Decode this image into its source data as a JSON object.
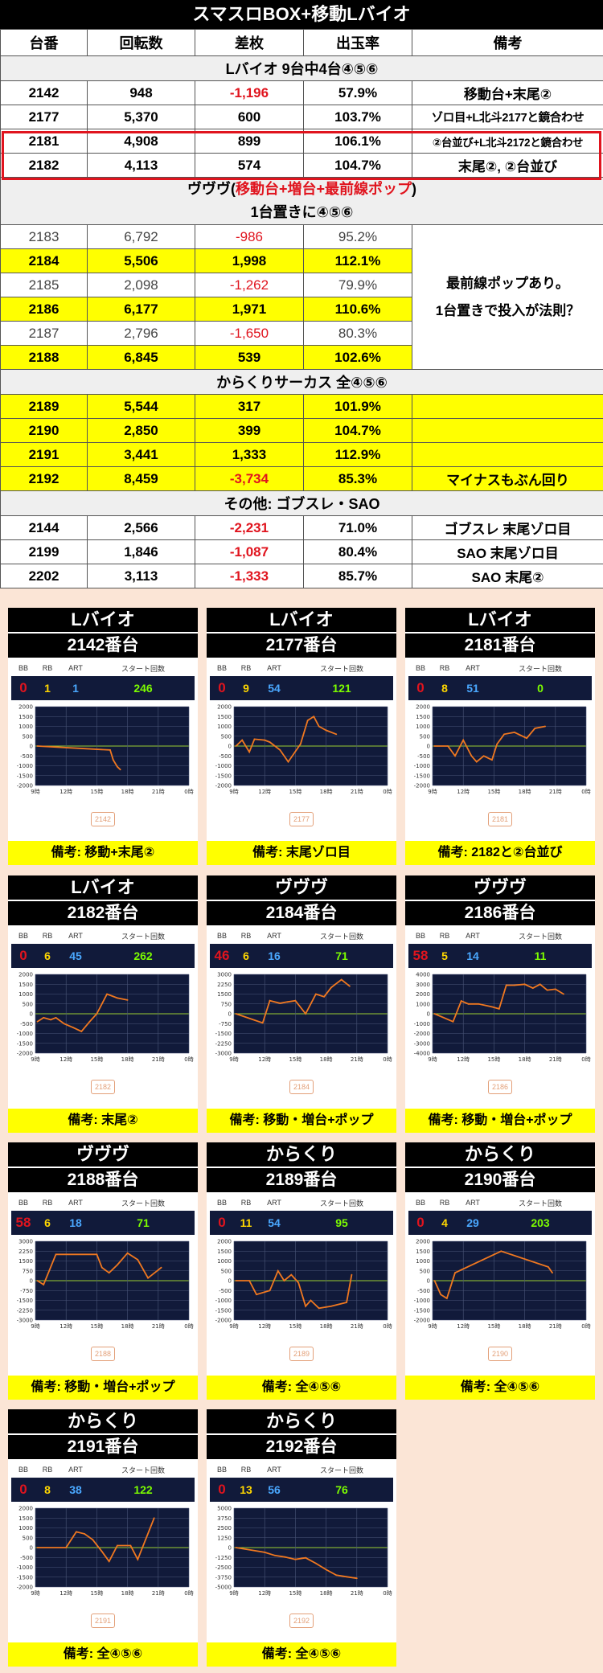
{
  "title": "スマスロBOX+移動Lバイオ",
  "headers": [
    "台番",
    "回転数",
    "差枚",
    "出玉率",
    "備考"
  ],
  "section1": "Lバイオ 9台中4台④⑤⑥",
  "rows1": [
    {
      "no": "2142",
      "spins": "948",
      "diff": "-1,196",
      "rate": "57.9%",
      "note": "移動台+末尾②"
    },
    {
      "no": "2177",
      "spins": "5,370",
      "diff": "600",
      "rate": "103.7%",
      "note": "ゾロ目+L北斗2177と鏡合わせ"
    },
    {
      "no": "2181",
      "spins": "4,908",
      "diff": "899",
      "rate": "106.1%",
      "note": "②台並び+L北斗2172と鏡合わせ"
    },
    {
      "no": "2182",
      "spins": "4,113",
      "diff": "574",
      "rate": "104.7%",
      "note": "末尾②, ②台並び"
    }
  ],
  "section2": {
    "pre": "ヴヴヴ(",
    "red": "移動台+増台+最前線ポップ",
    "post": ")",
    "line2": "1台置きに④⑤⑥"
  },
  "rows2": [
    {
      "no": "2183",
      "spins": "6,792",
      "diff": "-986",
      "rate": "95.2%"
    },
    {
      "no": "2184",
      "spins": "5,506",
      "diff": "1,998",
      "rate": "112.1%"
    },
    {
      "no": "2185",
      "spins": "2,098",
      "diff": "-1,262",
      "rate": "79.9%"
    },
    {
      "no": "2186",
      "spins": "6,177",
      "diff": "1,971",
      "rate": "110.6%"
    },
    {
      "no": "2187",
      "spins": "2,796",
      "diff": "-1,650",
      "rate": "80.3%"
    },
    {
      "no": "2188",
      "spins": "6,845",
      "diff": "539",
      "rate": "102.6%"
    }
  ],
  "rows2_note_line1": "最前線ポップあり。",
  "rows2_note_line2": "1台置きで投入が法則？",
  "section3": "からくりサーカス 全④⑤⑥",
  "rows3": [
    {
      "no": "2189",
      "spins": "5,544",
      "diff": "317",
      "rate": "101.9%",
      "note": ""
    },
    {
      "no": "2190",
      "spins": "2,850",
      "diff": "399",
      "rate": "104.7%",
      "note": ""
    },
    {
      "no": "2191",
      "spins": "3,441",
      "diff": "1,333",
      "rate": "112.9%",
      "note": ""
    },
    {
      "no": "2192",
      "spins": "8,459",
      "diff": "-3,734",
      "rate": "85.3%",
      "note": "マイナスもぶん回り"
    }
  ],
  "section4": "その他: ゴブスレ・SAO",
  "rows4": [
    {
      "no": "2144",
      "spins": "2,566",
      "diff": "-2,231",
      "rate": "71.0%",
      "note": "ゴブスレ 末尾ゾロ目"
    },
    {
      "no": "2199",
      "spins": "1,846",
      "diff": "-1,087",
      "rate": "80.4%",
      "note": "SAO 末尾ゾロ目"
    },
    {
      "no": "2202",
      "spins": "3,113",
      "diff": "-1,333",
      "rate": "85.7%",
      "note": "SAO 末尾②"
    }
  ],
  "card_labels": {
    "bb": "BB",
    "rb": "RB",
    "art": "ART",
    "start": "スタート回数"
  },
  "colors": {
    "accent_red": "#e0141e",
    "highlight_yellow": "#ffff00",
    "line_orange": "#f07820",
    "panel_navy": "#111a3a"
  },
  "cards": [
    {
      "machine": "Lバイオ",
      "unit": "2142番台",
      "badge": "2142",
      "bb": "0",
      "rb": "1",
      "art": "1",
      "start": "246",
      "note": "備考: 移動+末尾②",
      "chart": {
        "yticks": [
          "2000",
          "1500",
          "1000",
          "500",
          "0",
          "-500",
          "-1000",
          "-1500",
          "-2000"
        ],
        "ymin": -2000,
        "ymax": 2000,
        "xticks": [
          "9時",
          "12時",
          "15時",
          "18時",
          "21時",
          "0時"
        ],
        "points": [
          [
            9.2,
            0
          ],
          [
            16.3,
            -200
          ],
          [
            16.6,
            -700
          ],
          [
            17.0,
            -1050
          ],
          [
            17.3,
            -1200
          ]
        ]
      }
    },
    {
      "machine": "Lバイオ",
      "unit": "2177番台",
      "badge": "2177",
      "bb": "0",
      "rb": "9",
      "art": "54",
      "start": "121",
      "note": "備考: 末尾ゾロ目",
      "chart": {
        "yticks": [
          "2000",
          "1500",
          "1000",
          "500",
          "0",
          "-500",
          "-1000",
          "-1500",
          "-2000"
        ],
        "ymin": -2000,
        "ymax": 2000,
        "xticks": [
          "9時",
          "12時",
          "15時",
          "18時",
          "21時",
          "0時"
        ],
        "points": [
          [
            9.2,
            0
          ],
          [
            9.8,
            300
          ],
          [
            10.5,
            -300
          ],
          [
            11.0,
            350
          ],
          [
            12.0,
            300
          ],
          [
            12.5,
            200
          ],
          [
            13.5,
            -200
          ],
          [
            14.3,
            -800
          ],
          [
            15.5,
            100
          ],
          [
            16.2,
            1300
          ],
          [
            16.8,
            1500
          ],
          [
            17.3,
            1000
          ],
          [
            18.0,
            800
          ],
          [
            19.0,
            600
          ]
        ]
      }
    },
    {
      "machine": "Lバイオ",
      "unit": "2181番台",
      "badge": "2181",
      "bb": "0",
      "rb": "8",
      "art": "51",
      "start": "0",
      "note": "備考: 2182と②台並び",
      "chart": {
        "yticks": [
          "2000",
          "1500",
          "1000",
          "500",
          "0",
          "-500",
          "-1000",
          "-1500",
          "-2000"
        ],
        "ymin": -2000,
        "ymax": 2000,
        "xticks": [
          "9時",
          "12時",
          "15時",
          "18時",
          "21時",
          "0時"
        ],
        "points": [
          [
            9.2,
            0
          ],
          [
            10.5,
            0
          ],
          [
            11.2,
            -500
          ],
          [
            12.0,
            300
          ],
          [
            12.8,
            -500
          ],
          [
            13.3,
            -800
          ],
          [
            14.0,
            -500
          ],
          [
            14.8,
            -700
          ],
          [
            15.3,
            100
          ],
          [
            16.0,
            600
          ],
          [
            17.0,
            700
          ],
          [
            18.2,
            400
          ],
          [
            19.0,
            900
          ],
          [
            20.0,
            1000
          ]
        ]
      }
    },
    {
      "machine": "Lバイオ",
      "unit": "2182番台",
      "badge": "2182",
      "bb": "0",
      "rb": "6",
      "art": "45",
      "start": "262",
      "note": "備考: 末尾②",
      "chart": {
        "yticks": [
          "2000",
          "1500",
          "1000",
          "500",
          "0",
          "-500",
          "-1000",
          "-1500",
          "-2000"
        ],
        "ymin": -2000,
        "ymax": 2000,
        "xticks": [
          "9時",
          "12時",
          "15時",
          "18時",
          "21時",
          "0時"
        ],
        "points": [
          [
            9.2,
            -400
          ],
          [
            9.8,
            -200
          ],
          [
            10.5,
            -300
          ],
          [
            11.0,
            -200
          ],
          [
            11.8,
            -500
          ],
          [
            12.7,
            -700
          ],
          [
            13.5,
            -900
          ],
          [
            14.3,
            -400
          ],
          [
            15.0,
            0
          ],
          [
            16.0,
            1000
          ],
          [
            17.0,
            800
          ],
          [
            18.0,
            700
          ]
        ]
      }
    },
    {
      "machine": "ヴヴヴ",
      "unit": "2184番台",
      "badge": "2184",
      "bb": "46",
      "rb": "6",
      "art": "16",
      "start": "71",
      "note": "備考: 移動・増台+ポップ",
      "chart": {
        "yticks": [
          "3000",
          "2250",
          "1500",
          "750",
          "0",
          "-750",
          "-1500",
          "-2250",
          "-3000"
        ],
        "ymin": -3000,
        "ymax": 3000,
        "xticks": [
          "9時",
          "12時",
          "15時",
          "18時",
          "21時",
          "0時"
        ],
        "points": [
          [
            9.2,
            0
          ],
          [
            11.8,
            -700
          ],
          [
            12.5,
            1000
          ],
          [
            13.5,
            800
          ],
          [
            14.2,
            900
          ],
          [
            15.0,
            1000
          ],
          [
            16.0,
            0
          ],
          [
            17.0,
            1500
          ],
          [
            17.8,
            1300
          ],
          [
            18.5,
            2000
          ],
          [
            19.5,
            2600
          ],
          [
            20.3,
            2100
          ]
        ]
      }
    },
    {
      "machine": "ヴヴヴ",
      "unit": "2186番台",
      "badge": "2186",
      "bb": "58",
      "rb": "5",
      "art": "14",
      "start": "11",
      "note": "備考: 移動・増台+ポップ",
      "chart": {
        "yticks": [
          "4000",
          "3000",
          "2000",
          "1000",
          "0",
          "-1000",
          "-2000",
          "-3000",
          "-4000"
        ],
        "ymin": -4000,
        "ymax": 4000,
        "xticks": [
          "9時",
          "12時",
          "15時",
          "18時",
          "21時",
          "0時"
        ],
        "points": [
          [
            9.2,
            0
          ],
          [
            11.0,
            -800
          ],
          [
            11.8,
            1300
          ],
          [
            12.5,
            1000
          ],
          [
            13.5,
            1000
          ],
          [
            14.8,
            700
          ],
          [
            15.5,
            500
          ],
          [
            16.2,
            2900
          ],
          [
            17.0,
            2900
          ],
          [
            18.0,
            3000
          ],
          [
            18.8,
            2600
          ],
          [
            19.5,
            3000
          ],
          [
            20.2,
            2400
          ],
          [
            21.0,
            2500
          ],
          [
            21.8,
            2000
          ]
        ]
      }
    },
    {
      "machine": "ヴヴヴ",
      "unit": "2188番台",
      "badge": "2188",
      "bb": "58",
      "rb": "6",
      "art": "18",
      "start": "71",
      "note": "備考: 移動・増台+ポップ",
      "chart": {
        "yticks": [
          "3000",
          "2250",
          "1500",
          "750",
          "0",
          "-750",
          "-1500",
          "-2250",
          "-3000"
        ],
        "ymin": -3000,
        "ymax": 3000,
        "xticks": [
          "9時",
          "12時",
          "15時",
          "18時",
          "21時",
          "0時"
        ],
        "points": [
          [
            9.2,
            0
          ],
          [
            9.8,
            -300
          ],
          [
            11.0,
            2000
          ],
          [
            15.0,
            2000
          ],
          [
            15.5,
            1000
          ],
          [
            16.2,
            600
          ],
          [
            17.0,
            1200
          ],
          [
            18.0,
            2100
          ],
          [
            19.0,
            1600
          ],
          [
            20.0,
            200
          ],
          [
            21.3,
            1000
          ]
        ]
      }
    },
    {
      "machine": "からくり",
      "unit": "2189番台",
      "badge": "2189",
      "bb": "0",
      "rb": "11",
      "art": "54",
      "start": "95",
      "note": "備考: 全④⑤⑥",
      "chart": {
        "yticks": [
          "2000",
          "1500",
          "1000",
          "500",
          "0",
          "-500",
          "-1000",
          "-1500",
          "-2000"
        ],
        "ymin": -2000,
        "ymax": 2000,
        "xticks": [
          "9時",
          "12時",
          "15時",
          "18時",
          "21時",
          "0時"
        ],
        "points": [
          [
            9.2,
            0
          ],
          [
            10.5,
            0
          ],
          [
            11.2,
            -700
          ],
          [
            12.5,
            -500
          ],
          [
            13.3,
            500
          ],
          [
            13.9,
            0
          ],
          [
            14.6,
            300
          ],
          [
            15.3,
            -100
          ],
          [
            16.0,
            -1300
          ],
          [
            16.5,
            -1000
          ],
          [
            17.3,
            -1400
          ],
          [
            18.5,
            -1300
          ],
          [
            20.0,
            -1100
          ],
          [
            20.5,
            300
          ]
        ]
      }
    },
    {
      "machine": "からくり",
      "unit": "2190番台",
      "badge": "2190",
      "bb": "0",
      "rb": "4",
      "art": "29",
      "start": "203",
      "note": "備考: 全④⑤⑥",
      "chart": {
        "yticks": [
          "2000",
          "1500",
          "1000",
          "500",
          "0",
          "-500",
          "-1000",
          "-1500",
          "-2000"
        ],
        "ymin": -2000,
        "ymax": 2000,
        "xticks": [
          "9時",
          "12時",
          "15時",
          "18時",
          "21時",
          "0時"
        ],
        "points": [
          [
            9.2,
            0
          ],
          [
            9.8,
            -700
          ],
          [
            10.4,
            -900
          ],
          [
            11.2,
            400
          ],
          [
            15.7,
            1500
          ],
          [
            20.3,
            700
          ],
          [
            20.7,
            400
          ]
        ]
      }
    },
    {
      "machine": "からくり",
      "unit": "2191番台",
      "badge": "2191",
      "bb": "0",
      "rb": "8",
      "art": "38",
      "start": "122",
      "note": "備考: 全④⑤⑥",
      "chart": {
        "yticks": [
          "2000",
          "1500",
          "1000",
          "500",
          "0",
          "-500",
          "-1000",
          "-1500",
          "-2000"
        ],
        "ymin": -2000,
        "ymax": 2000,
        "xticks": [
          "9時",
          "12時",
          "15時",
          "18時",
          "21時",
          "0時"
        ],
        "points": [
          [
            9.2,
            0
          ],
          [
            12.0,
            0
          ],
          [
            13.0,
            800
          ],
          [
            13.8,
            700
          ],
          [
            14.6,
            400
          ],
          [
            15.5,
            -200
          ],
          [
            16.2,
            -700
          ],
          [
            17.0,
            100
          ],
          [
            18.3,
            100
          ],
          [
            19.0,
            -600
          ],
          [
            20.6,
            1500
          ]
        ]
      }
    },
    {
      "machine": "からくり",
      "unit": "2192番台",
      "badge": "2192",
      "bb": "0",
      "rb": "13",
      "art": "56",
      "start": "76",
      "note": "備考: 全④⑤⑥",
      "chart": {
        "yticks": [
          "5000",
          "3750",
          "2500",
          "1250",
          "0",
          "-1250",
          "-2500",
          "-3750",
          "-5000"
        ],
        "ymin": -5000,
        "ymax": 5000,
        "xticks": [
          "9時",
          "12時",
          "15時",
          "18時",
          "21時",
          "0時"
        ],
        "points": [
          [
            9.2,
            0
          ],
          [
            12.0,
            -600
          ],
          [
            13.0,
            -1000
          ],
          [
            14.0,
            -1200
          ],
          [
            15.0,
            -1500
          ],
          [
            16.0,
            -1300
          ],
          [
            17.0,
            -2000
          ],
          [
            18.0,
            -2800
          ],
          [
            19.0,
            -3500
          ],
          [
            20.0,
            -3700
          ],
          [
            21.0,
            -3900
          ]
        ]
      }
    }
  ]
}
